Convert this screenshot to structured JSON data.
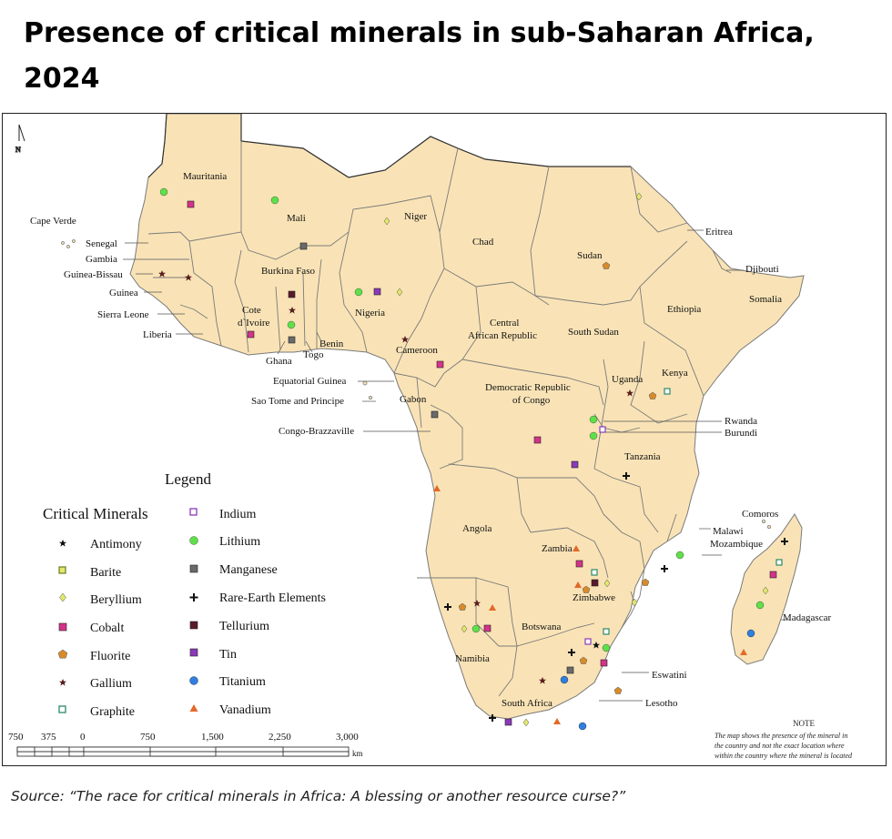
{
  "title": "Presence of critical minerals in sub-Saharan Africa, 2024",
  "source": "Source: “The race for critical minerals in Africa: A blessing or another resource curse?”",
  "north_label": "N",
  "colors": {
    "land": "#f9e3b6",
    "border": "#7a7a7a",
    "lithium": "#5fe04a",
    "cobalt": "#d4338a",
    "fluorite": "#d88b2a",
    "titanium": "#2f7fe0",
    "vanadium": "#e2692a",
    "beryllium": "#e2e86a",
    "tin": "#8a3ab8"
  },
  "countries": [
    "Mauritania",
    "Mali",
    "Niger",
    "Chad",
    "Sudan",
    "Eritrea",
    "Djibouti",
    "Somalia",
    "Ethiopia",
    "South Sudan",
    "Central African Republic",
    "Cameroon",
    "Nigeria",
    "Benin",
    "Togo",
    "Ghana",
    "Cote d`Ivoire",
    "Burkina Faso",
    "Cape Verde",
    "Senegal",
    "Gambia",
    "Guinea-Bissau",
    "Guinea",
    "Sierra Leone",
    "Liberia",
    "Equatorial Guinea",
    "Sao Tome and Principe",
    "Gabon",
    "Congo-Brazzaville",
    "Democratic Republic of Congo",
    "Uganda",
    "Kenya",
    "Rwanda",
    "Burundi",
    "Tanzania",
    "Angola",
    "Zambia",
    "Malawi",
    "Comoros",
    "Mozambique",
    "Zimbabwe",
    "Madagascar",
    "Botswana",
    "Namibia",
    "Eswatini",
    "Lesotho",
    "South Africa"
  ],
  "legend": {
    "title": "Legend",
    "heading": "Critical Minerals",
    "left": [
      {
        "label": "Antimony",
        "icon": "antimony-star-icon"
      },
      {
        "label": "Barite",
        "icon": "barite-square-icon"
      },
      {
        "label": "Beryllium",
        "icon": "beryllium-diamond-icon"
      },
      {
        "label": "Cobalt",
        "icon": "cobalt-square-icon"
      },
      {
        "label": "Fluorite",
        "icon": "fluorite-pentagon-icon"
      },
      {
        "label": "Gallium",
        "icon": "gallium-star-icon"
      },
      {
        "label": "Graphite",
        "icon": "graphite-square-icon"
      }
    ],
    "right": [
      {
        "label": "Indium",
        "icon": "indium-square-icon"
      },
      {
        "label": "Lithium",
        "icon": "lithium-circle-icon"
      },
      {
        "label": "Manganese",
        "icon": "manganese-square-icon"
      },
      {
        "label": "Rare-Earth Elements",
        "icon": "rare-earth-cross-icon"
      },
      {
        "label": "Tellurium",
        "icon": "tellurium-square-icon"
      },
      {
        "label": "Tin",
        "icon": "tin-square-icon"
      },
      {
        "label": "Titanium",
        "icon": "titanium-circle-icon"
      },
      {
        "label": "Vanadium",
        "icon": "vanadium-triangle-icon"
      }
    ]
  },
  "scale": {
    "ticks": [
      "750",
      "375",
      "0",
      "750",
      "1,500",
      "2,250",
      "3,000"
    ],
    "unit": "km"
  },
  "note": {
    "heading": "NOTE",
    "lines": [
      "The map shows the presence of the mineral in",
      "the country and not the exact location where",
      "within the country where the mineral is located"
    ]
  }
}
